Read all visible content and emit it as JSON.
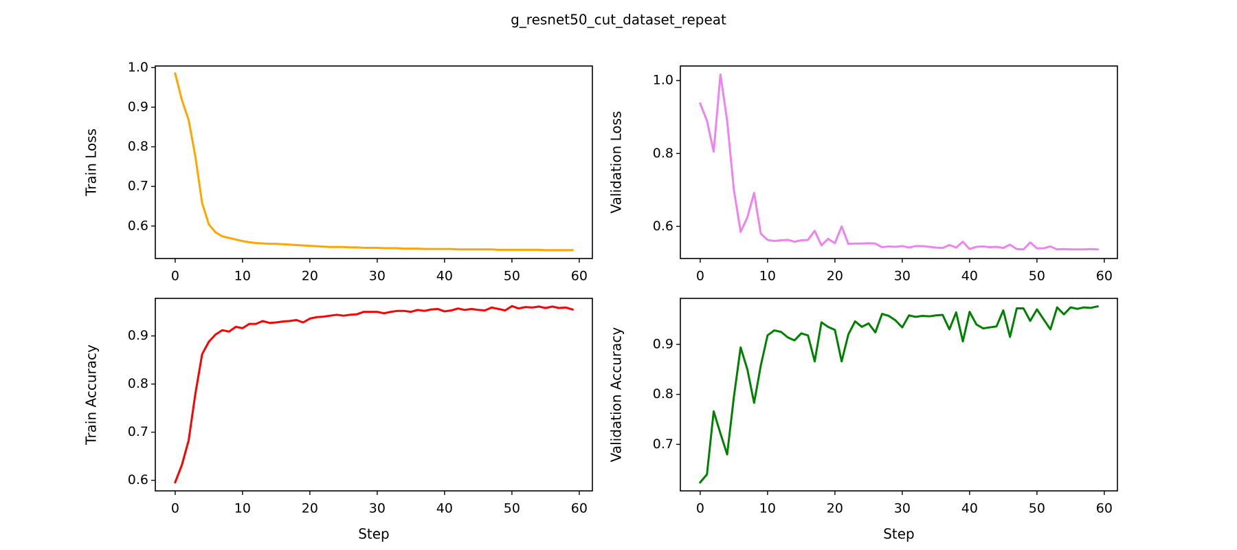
{
  "figure": {
    "title": "g_resnet50_cut_dataset_repeat"
  },
  "chart_data": [
    {
      "type": "line",
      "title": "",
      "xlabel": "",
      "ylabel": "Train Loss",
      "xlim": [
        -2.95,
        61.95
      ],
      "ylim": [
        0.518,
        1.004
      ],
      "xticks": [
        "0",
        "10",
        "20",
        "30",
        "40",
        "50",
        "60"
      ],
      "yticks": [
        "0.6",
        "0.7",
        "0.8",
        "0.9",
        "1.0"
      ],
      "x": [
        0,
        1,
        2,
        3,
        4,
        5,
        6,
        7,
        8,
        9,
        10,
        11,
        12,
        13,
        14,
        15,
        16,
        17,
        18,
        19,
        20,
        21,
        22,
        23,
        24,
        25,
        26,
        27,
        28,
        29,
        30,
        31,
        32,
        33,
        34,
        35,
        36,
        37,
        38,
        39,
        40,
        41,
        42,
        43,
        44,
        45,
        46,
        47,
        48,
        49,
        50,
        51,
        52,
        53,
        54,
        55,
        56,
        57,
        58,
        59
      ],
      "series": [
        {
          "color": "#ffa500",
          "values": [
            0.985,
            0.918,
            0.868,
            0.775,
            0.658,
            0.604,
            0.584,
            0.574,
            0.57,
            0.566,
            0.562,
            0.559,
            0.557,
            0.556,
            0.555,
            0.555,
            0.554,
            0.553,
            0.552,
            0.551,
            0.55,
            0.549,
            0.548,
            0.547,
            0.547,
            0.547,
            0.546,
            0.546,
            0.545,
            0.545,
            0.545,
            0.544,
            0.544,
            0.544,
            0.543,
            0.543,
            0.543,
            0.542,
            0.542,
            0.542,
            0.542,
            0.542,
            0.541,
            0.541,
            0.541,
            0.541,
            0.541,
            0.541,
            0.54,
            0.54,
            0.54,
            0.54,
            0.54,
            0.54,
            0.54,
            0.539,
            0.539,
            0.539,
            0.539,
            0.539
          ]
        }
      ]
    },
    {
      "type": "line",
      "title": "",
      "xlabel": "",
      "ylabel": "Validation Loss",
      "xlim": [
        -2.95,
        61.95
      ],
      "ylim": [
        0.512,
        1.04
      ],
      "xticks": [
        "0",
        "10",
        "20",
        "30",
        "40",
        "50",
        "60"
      ],
      "yticks": [
        "0.6",
        "0.8",
        "1.0"
      ],
      "x": [
        0,
        1,
        2,
        3,
        4,
        5,
        6,
        7,
        8,
        9,
        10,
        11,
        12,
        13,
        14,
        15,
        16,
        17,
        18,
        19,
        20,
        21,
        22,
        23,
        24,
        25,
        26,
        27,
        28,
        29,
        30,
        31,
        32,
        33,
        34,
        35,
        36,
        37,
        38,
        39,
        40,
        41,
        42,
        43,
        44,
        45,
        46,
        47,
        48,
        49,
        50,
        51,
        52,
        53,
        54,
        55,
        56,
        57,
        58,
        59
      ],
      "series": [
        {
          "color": "#ee82ee",
          "values": [
            0.937,
            0.89,
            0.805,
            1.017,
            0.89,
            0.7,
            0.585,
            0.625,
            0.692,
            0.58,
            0.563,
            0.56,
            0.562,
            0.563,
            0.558,
            0.562,
            0.563,
            0.588,
            0.548,
            0.566,
            0.554,
            0.6,
            0.552,
            0.553,
            0.553,
            0.554,
            0.553,
            0.543,
            0.545,
            0.544,
            0.546,
            0.542,
            0.546,
            0.546,
            0.544,
            0.542,
            0.541,
            0.549,
            0.542,
            0.558,
            0.538,
            0.544,
            0.545,
            0.543,
            0.544,
            0.541,
            0.55,
            0.538,
            0.537,
            0.556,
            0.54,
            0.54,
            0.545,
            0.537,
            0.538,
            0.537,
            0.537,
            0.537,
            0.538,
            0.537
          ]
        }
      ]
    },
    {
      "type": "line",
      "title": "",
      "xlabel": "Step",
      "ylabel": "Train Accuracy",
      "xlim": [
        -2.95,
        61.95
      ],
      "ylim": [
        0.578,
        0.978
      ],
      "xticks": [
        "0",
        "10",
        "20",
        "30",
        "40",
        "50",
        "60"
      ],
      "yticks": [
        "0.6",
        "0.7",
        "0.8",
        "0.9"
      ],
      "x": [
        0,
        1,
        2,
        3,
        4,
        5,
        6,
        7,
        8,
        9,
        10,
        11,
        12,
        13,
        14,
        15,
        16,
        17,
        18,
        19,
        20,
        21,
        22,
        23,
        24,
        25,
        26,
        27,
        28,
        29,
        30,
        31,
        32,
        33,
        34,
        35,
        36,
        37,
        38,
        39,
        40,
        41,
        42,
        43,
        44,
        45,
        46,
        47,
        48,
        49,
        50,
        51,
        52,
        53,
        54,
        55,
        56,
        57,
        58,
        59
      ],
      "series": [
        {
          "color": "#ff0000",
          "values": [
            0.596,
            0.632,
            0.683,
            0.78,
            0.862,
            0.888,
            0.903,
            0.912,
            0.909,
            0.919,
            0.916,
            0.925,
            0.925,
            0.931,
            0.927,
            0.928,
            0.93,
            0.931,
            0.933,
            0.928,
            0.936,
            0.939,
            0.94,
            0.942,
            0.944,
            0.942,
            0.944,
            0.945,
            0.95,
            0.95,
            0.95,
            0.947,
            0.95,
            0.952,
            0.952,
            0.95,
            0.954,
            0.952,
            0.955,
            0.956,
            0.951,
            0.953,
            0.957,
            0.954,
            0.956,
            0.954,
            0.953,
            0.959,
            0.956,
            0.953,
            0.962,
            0.957,
            0.96,
            0.959,
            0.961,
            0.958,
            0.961,
            0.958,
            0.959,
            0.955
          ]
        }
      ]
    },
    {
      "type": "line",
      "title": "",
      "xlabel": "Step",
      "ylabel": "Validation Accuracy",
      "xlim": [
        -2.95,
        61.95
      ],
      "ylim": [
        0.607,
        0.992
      ],
      "xticks": [
        "0",
        "10",
        "20",
        "30",
        "40",
        "50",
        "60"
      ],
      "yticks": [
        "0.7",
        "0.8",
        "0.9"
      ],
      "x": [
        0,
        1,
        2,
        3,
        4,
        5,
        6,
        7,
        8,
        9,
        10,
        11,
        12,
        13,
        14,
        15,
        16,
        17,
        18,
        19,
        20,
        21,
        22,
        23,
        24,
        25,
        26,
        27,
        28,
        29,
        30,
        31,
        32,
        33,
        34,
        35,
        36,
        37,
        38,
        39,
        40,
        41,
        42,
        43,
        44,
        45,
        46,
        47,
        48,
        49,
        50,
        51,
        52,
        53,
        54,
        55,
        56,
        57,
        58,
        59
      ],
      "series": [
        {
          "color": "#008000",
          "values": [
            0.624,
            0.64,
            0.766,
            0.722,
            0.68,
            0.795,
            0.894,
            0.85,
            0.783,
            0.858,
            0.918,
            0.928,
            0.925,
            0.914,
            0.908,
            0.922,
            0.918,
            0.866,
            0.944,
            0.935,
            0.929,
            0.866,
            0.92,
            0.946,
            0.935,
            0.942,
            0.924,
            0.961,
            0.957,
            0.948,
            0.934,
            0.958,
            0.955,
            0.957,
            0.956,
            0.958,
            0.959,
            0.93,
            0.964,
            0.906,
            0.965,
            0.94,
            0.932,
            0.934,
            0.936,
            0.968,
            0.915,
            0.972,
            0.972,
            0.947,
            0.97,
            0.95,
            0.93,
            0.974,
            0.96,
            0.974,
            0.971,
            0.974,
            0.973,
            0.976
          ]
        }
      ]
    }
  ]
}
